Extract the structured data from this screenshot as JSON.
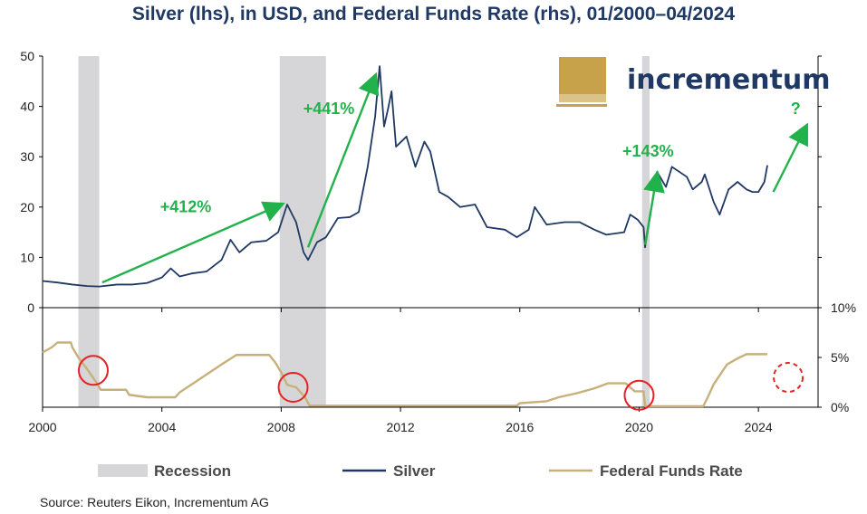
{
  "title": "Silver (lhs), in USD, and Federal Funds Rate (rhs), 01/2000–04/2024",
  "source": "Source: Reuters Eikon, Incrementum AG",
  "logo_text": "incrementum",
  "colors": {
    "silver": "#1f3864",
    "fed_funds": "#c8b07a",
    "recession": "#d6d6d9",
    "arrows": "#22b24c",
    "circles": "#e52222",
    "title": "#1f3864"
  },
  "chart_data": [
    {
      "type": "line",
      "panel": "top",
      "ylabel": "",
      "ylim": [
        0,
        50
      ],
      "yticks": [
        "0",
        "10",
        "20",
        "30",
        "40",
        "50"
      ],
      "series": [
        {
          "name": "Silver",
          "points": [
            [
              2000.0,
              5.3
            ],
            [
              2000.5,
              5.0
            ],
            [
              2001.0,
              4.6
            ],
            [
              2001.5,
              4.3
            ],
            [
              2001.9,
              4.2
            ],
            [
              2002.5,
              4.6
            ],
            [
              2003.0,
              4.6
            ],
            [
              2003.5,
              4.9
            ],
            [
              2004.0,
              6.0
            ],
            [
              2004.3,
              7.8
            ],
            [
              2004.6,
              6.2
            ],
            [
              2005.0,
              6.8
            ],
            [
              2005.5,
              7.2
            ],
            [
              2006.0,
              9.5
            ],
            [
              2006.3,
              13.5
            ],
            [
              2006.6,
              11.0
            ],
            [
              2007.0,
              13.0
            ],
            [
              2007.5,
              13.3
            ],
            [
              2007.9,
              15.0
            ],
            [
              2008.2,
              20.5
            ],
            [
              2008.5,
              17.0
            ],
            [
              2008.75,
              11.0
            ],
            [
              2008.9,
              9.5
            ],
            [
              2009.2,
              13.0
            ],
            [
              2009.5,
              14.0
            ],
            [
              2009.9,
              17.8
            ],
            [
              2010.3,
              18.0
            ],
            [
              2010.6,
              19.0
            ],
            [
              2010.9,
              28.0
            ],
            [
              2011.15,
              38.0
            ],
            [
              2011.3,
              48.0
            ],
            [
              2011.45,
              36.0
            ],
            [
              2011.6,
              40.0
            ],
            [
              2011.7,
              43.0
            ],
            [
              2011.85,
              32.0
            ],
            [
              2012.2,
              34.0
            ],
            [
              2012.5,
              28.0
            ],
            [
              2012.8,
              33.0
            ],
            [
              2013.0,
              31.0
            ],
            [
              2013.3,
              23.0
            ],
            [
              2013.6,
              22.0
            ],
            [
              2014.0,
              20.0
            ],
            [
              2014.5,
              20.5
            ],
            [
              2014.9,
              16.0
            ],
            [
              2015.5,
              15.5
            ],
            [
              2015.9,
              14.0
            ],
            [
              2016.3,
              15.5
            ],
            [
              2016.5,
              20.0
            ],
            [
              2016.9,
              16.5
            ],
            [
              2017.5,
              17.0
            ],
            [
              2018.0,
              17.0
            ],
            [
              2018.5,
              15.5
            ],
            [
              2018.9,
              14.5
            ],
            [
              2019.5,
              15.0
            ],
            [
              2019.7,
              18.5
            ],
            [
              2019.95,
              17.5
            ],
            [
              2020.15,
              16.0
            ],
            [
              2020.2,
              12.0
            ],
            [
              2020.35,
              17.5
            ],
            [
              2020.6,
              27.0
            ],
            [
              2020.9,
              24.0
            ],
            [
              2021.1,
              28.0
            ],
            [
              2021.6,
              26.0
            ],
            [
              2021.8,
              23.5
            ],
            [
              2022.1,
              25.0
            ],
            [
              2022.2,
              26.5
            ],
            [
              2022.5,
              21.0
            ],
            [
              2022.7,
              18.5
            ],
            [
              2023.0,
              23.5
            ],
            [
              2023.3,
              25.0
            ],
            [
              2023.6,
              23.5
            ],
            [
              2023.8,
              23.0
            ],
            [
              2024.0,
              23.0
            ],
            [
              2024.2,
              25.0
            ],
            [
              2024.3,
              28.3
            ]
          ]
        }
      ],
      "annotations": [
        {
          "text": "+412%",
          "from": [
            2002.0,
            5.0
          ],
          "to": [
            2008.0,
            20.5
          ],
          "label_at": [
            2004.8,
            19.0
          ]
        },
        {
          "text": "+441%",
          "from": [
            2008.9,
            12.0
          ],
          "to": [
            2011.15,
            46.0
          ],
          "label_at": [
            2009.6,
            38.5
          ]
        },
        {
          "text": "+143%",
          "from": [
            2020.2,
            12.5
          ],
          "to": [
            2020.6,
            26.5
          ],
          "label_at": [
            2020.3,
            30.0
          ]
        },
        {
          "text": "?",
          "from": [
            2024.5,
            23.0
          ],
          "to": [
            2025.6,
            36.0
          ],
          "label_at": [
            2025.25,
            38.5
          ]
        }
      ]
    },
    {
      "type": "line",
      "panel": "bottom",
      "ylabel": "",
      "ylim": [
        0,
        10
      ],
      "yticks": [
        "0%",
        "5%",
        "10%"
      ],
      "series": [
        {
          "name": "Federal Funds Rate",
          "points": [
            [
              2000.0,
              5.5
            ],
            [
              2000.3,
              6.0
            ],
            [
              2000.5,
              6.5
            ],
            [
              2000.95,
              6.5
            ],
            [
              2001.0,
              6.0
            ],
            [
              2001.2,
              5.0
            ],
            [
              2001.5,
              3.8
            ],
            [
              2001.8,
              2.5
            ],
            [
              2001.95,
              1.75
            ],
            [
              2002.8,
              1.75
            ],
            [
              2002.9,
              1.25
            ],
            [
              2003.5,
              1.0
            ],
            [
              2004.45,
              1.0
            ],
            [
              2004.6,
              1.5
            ],
            [
              2005.0,
              2.3
            ],
            [
              2005.5,
              3.3
            ],
            [
              2006.0,
              4.3
            ],
            [
              2006.5,
              5.25
            ],
            [
              2007.6,
              5.25
            ],
            [
              2007.8,
              4.5
            ],
            [
              2008.0,
              3.5
            ],
            [
              2008.2,
              2.25
            ],
            [
              2008.5,
              2.0
            ],
            [
              2008.8,
              1.0
            ],
            [
              2008.95,
              0.15
            ],
            [
              2015.9,
              0.15
            ],
            [
              2016.0,
              0.4
            ],
            [
              2016.9,
              0.6
            ],
            [
              2017.3,
              1.0
            ],
            [
              2017.9,
              1.4
            ],
            [
              2018.5,
              1.9
            ],
            [
              2018.95,
              2.4
            ],
            [
              2019.55,
              2.4
            ],
            [
              2019.7,
              2.0
            ],
            [
              2019.85,
              1.6
            ],
            [
              2020.15,
              1.6
            ],
            [
              2020.2,
              0.1
            ],
            [
              2022.15,
              0.1
            ],
            [
              2022.3,
              1.0
            ],
            [
              2022.5,
              2.3
            ],
            [
              2022.7,
              3.2
            ],
            [
              2022.95,
              4.3
            ],
            [
              2023.3,
              4.9
            ],
            [
              2023.6,
              5.33
            ],
            [
              2024.3,
              5.33
            ]
          ]
        }
      ],
      "markers": [
        {
          "at": [
            2001.7,
            3.7
          ],
          "style": "solid"
        },
        {
          "at": [
            2008.4,
            2.0
          ],
          "style": "solid"
        },
        {
          "at": [
            2020.0,
            1.2
          ],
          "style": "solid"
        },
        {
          "at": [
            2025.0,
            3.0
          ],
          "style": "dashed"
        }
      ]
    }
  ],
  "x_axis": {
    "xlim": [
      2000.0,
      2026.0
    ],
    "ticks": [
      "2000",
      "2004",
      "2008",
      "2012",
      "2016",
      "2020",
      "2024"
    ]
  },
  "recessions": [
    [
      2001.2,
      2001.9
    ],
    [
      2007.95,
      2009.5
    ],
    [
      2020.1,
      2020.35
    ]
  ],
  "legend": {
    "placement": "bottom",
    "items": [
      {
        "label": "Recession",
        "kind": "band"
      },
      {
        "label": "Silver",
        "kind": "line-silver"
      },
      {
        "label": "Federal Funds Rate",
        "kind": "line-fed"
      }
    ]
  }
}
